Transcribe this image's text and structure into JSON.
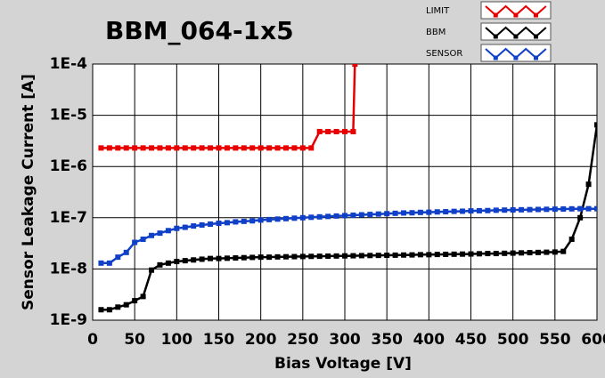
{
  "chart_data": {
    "type": "line",
    "title": "BBM_064-1x5",
    "x_label": "Bias Voltage [V]",
    "y_label": "Sensor Leakage Current [A]",
    "xlim": [
      0,
      600
    ],
    "xticks": [
      0,
      50,
      100,
      150,
      200,
      250,
      300,
      350,
      400,
      450,
      500,
      550,
      600
    ],
    "ylim": [
      1e-09,
      0.0001
    ],
    "log_y": true,
    "yticks": [
      {
        "value": 1e-09,
        "label": "1E-9"
      },
      {
        "value": 1e-08,
        "label": "1E-8"
      },
      {
        "value": 1e-07,
        "label": "1E-7"
      },
      {
        "value": 1e-06,
        "label": "1E-6"
      },
      {
        "value": 1e-05,
        "label": "1E-5"
      },
      {
        "value": 0.0001,
        "label": "1E-4"
      }
    ],
    "grid": true,
    "legend": "upper right",
    "series": [
      {
        "name": "LIMIT",
        "color": "#e80000",
        "x": [
          10,
          20,
          30,
          40,
          50,
          60,
          70,
          80,
          90,
          100,
          110,
          120,
          130,
          140,
          150,
          160,
          170,
          180,
          190,
          200,
          210,
          220,
          230,
          240,
          250,
          260,
          270,
          280,
          290,
          300,
          310,
          312
        ],
        "values": [
          2.3e-06,
          2.3e-06,
          2.3e-06,
          2.3e-06,
          2.3e-06,
          2.3e-06,
          2.3e-06,
          2.3e-06,
          2.3e-06,
          2.3e-06,
          2.3e-06,
          2.3e-06,
          2.3e-06,
          2.3e-06,
          2.3e-06,
          2.3e-06,
          2.3e-06,
          2.3e-06,
          2.3e-06,
          2.3e-06,
          2.3e-06,
          2.3e-06,
          2.3e-06,
          2.3e-06,
          2.3e-06,
          2.3e-06,
          4.8e-06,
          4.8e-06,
          4.8e-06,
          4.8e-06,
          4.8e-06,
          0.0001
        ]
      },
      {
        "name": "BBM",
        "color": "#000000",
        "x": [
          10,
          20,
          30,
          40,
          50,
          60,
          70,
          80,
          90,
          100,
          110,
          120,
          130,
          140,
          150,
          160,
          170,
          180,
          190,
          200,
          210,
          220,
          230,
          240,
          250,
          260,
          270,
          280,
          290,
          300,
          310,
          320,
          330,
          340,
          350,
          360,
          370,
          380,
          390,
          400,
          410,
          420,
          430,
          440,
          450,
          460,
          470,
          480,
          490,
          500,
          510,
          520,
          530,
          540,
          550,
          560,
          570,
          580,
          590,
          600
        ],
        "values": [
          1.6e-09,
          1.6e-09,
          1.8e-09,
          2e-09,
          2.4e-09,
          2.9e-09,
          9.5e-09,
          1.2e-08,
          1.3e-08,
          1.4e-08,
          1.45e-08,
          1.5e-08,
          1.55e-08,
          1.6e-08,
          1.6e-08,
          1.62e-08,
          1.64e-08,
          1.66e-08,
          1.68e-08,
          1.7e-08,
          1.7e-08,
          1.72e-08,
          1.73e-08,
          1.74e-08,
          1.75e-08,
          1.76e-08,
          1.77e-08,
          1.78e-08,
          1.79e-08,
          1.8e-08,
          1.81e-08,
          1.82e-08,
          1.83e-08,
          1.84e-08,
          1.85e-08,
          1.86e-08,
          1.87e-08,
          1.88e-08,
          1.9e-08,
          1.9e-08,
          1.92e-08,
          1.93e-08,
          1.94e-08,
          1.95e-08,
          1.96e-08,
          1.98e-08,
          2e-08,
          2e-08,
          2.02e-08,
          2.04e-08,
          2.06e-08,
          2.08e-08,
          2.1e-08,
          2.12e-08,
          2.14e-08,
          2.2e-08,
          3.8e-08,
          1e-07,
          4.5e-07,
          6.5e-06
        ]
      },
      {
        "name": "SENSOR",
        "color": "#1040c8",
        "x": [
          10,
          20,
          30,
          40,
          50,
          60,
          70,
          80,
          90,
          100,
          110,
          120,
          130,
          140,
          150,
          160,
          170,
          180,
          190,
          200,
          210,
          220,
          230,
          240,
          250,
          260,
          270,
          280,
          290,
          300,
          310,
          320,
          330,
          340,
          350,
          360,
          370,
          380,
          390,
          400,
          410,
          420,
          430,
          440,
          450,
          460,
          470,
          480,
          490,
          500,
          510,
          520,
          530,
          540,
          550,
          560,
          570,
          580,
          590,
          600
        ],
        "values": [
          1.3e-08,
          1.3e-08,
          1.7e-08,
          2.1e-08,
          3.3e-08,
          3.8e-08,
          4.5e-08,
          5e-08,
          5.6e-08,
          6.2e-08,
          6.5e-08,
          6.9e-08,
          7.2e-08,
          7.5e-08,
          7.8e-08,
          8e-08,
          8.3e-08,
          8.5e-08,
          8.7e-08,
          9e-08,
          9.2e-08,
          9.4e-08,
          9.6e-08,
          9.8e-08,
          1e-07,
          1.02e-07,
          1.04e-07,
          1.06e-07,
          1.08e-07,
          1.1e-07,
          1.12e-07,
          1.14e-07,
          1.16e-07,
          1.18e-07,
          1.2e-07,
          1.22e-07,
          1.24e-07,
          1.25e-07,
          1.27e-07,
          1.28e-07,
          1.3e-07,
          1.31e-07,
          1.33e-07,
          1.34e-07,
          1.36e-07,
          1.37e-07,
          1.38e-07,
          1.4e-07,
          1.41e-07,
          1.42e-07,
          1.43e-07,
          1.44e-07,
          1.45e-07,
          1.46e-07,
          1.47e-07,
          1.48e-07,
          1.49e-07,
          1.5e-07,
          1.5e-07,
          1.5e-07
        ]
      }
    ]
  }
}
